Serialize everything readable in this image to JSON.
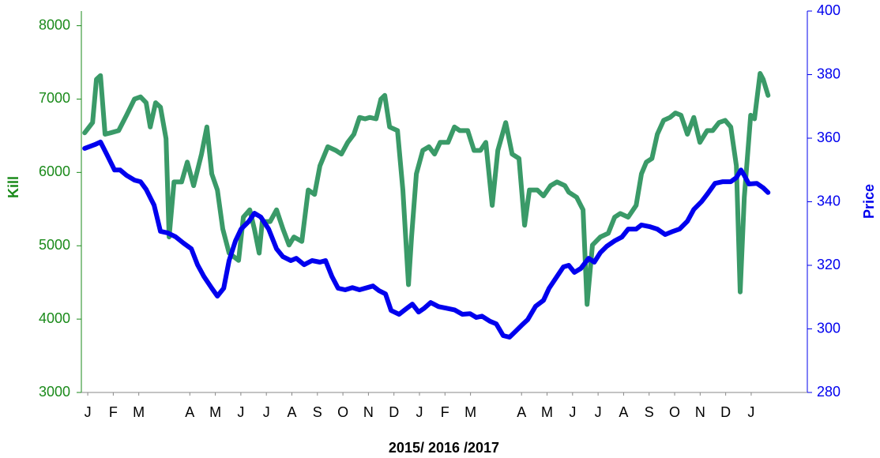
{
  "chart_data": {
    "type": "line",
    "xlabel": "2015/ 2016 /2017",
    "ylabel": "Kill",
    "y2label": "Price",
    "xlim": [
      -0.25,
      28.2
    ],
    "xticks": [
      {
        "value": 0,
        "label": "J"
      },
      {
        "value": 1,
        "label": "F"
      },
      {
        "value": 2,
        "label": "M"
      },
      {
        "value": 4,
        "label": "A"
      },
      {
        "value": 5,
        "label": "M"
      },
      {
        "value": 6,
        "label": "J"
      },
      {
        "value": 7,
        "label": "J"
      },
      {
        "value": 8,
        "label": "A"
      },
      {
        "value": 9,
        "label": "S"
      },
      {
        "value": 10,
        "label": "O"
      },
      {
        "value": 11,
        "label": "N"
      },
      {
        "value": 12,
        "label": "D"
      },
      {
        "value": 13,
        "label": "J"
      },
      {
        "value": 14,
        "label": "F"
      },
      {
        "value": 15,
        "label": "M"
      },
      {
        "value": 17,
        "label": "A"
      },
      {
        "value": 18,
        "label": "M"
      },
      {
        "value": 19,
        "label": "J"
      },
      {
        "value": 20,
        "label": "J"
      },
      {
        "value": 21,
        "label": "A"
      },
      {
        "value": 22,
        "label": "S"
      },
      {
        "value": 23,
        "label": "O"
      },
      {
        "value": 24,
        "label": "N"
      },
      {
        "value": 25,
        "label": "D"
      },
      {
        "value": 26,
        "label": "J"
      }
    ],
    "ylim": [
      3000,
      8200
    ],
    "yticks": [
      3000,
      4000,
      5000,
      6000,
      7000,
      8000
    ],
    "y2lim": [
      280,
      400
    ],
    "y2ticks": [
      280,
      300,
      320,
      340,
      360,
      380,
      400
    ],
    "series": [
      {
        "name": "Kill",
        "color": "#3a9a68",
        "axis": "y",
        "x": [
          -0.12,
          0.19,
          0.34,
          0.5,
          0.68,
          0.9,
          1.21,
          1.52,
          1.83,
          2.07,
          2.29,
          2.45,
          2.66,
          2.85,
          3.07,
          3.19,
          3.38,
          3.68,
          3.9,
          4.15,
          4.46,
          4.67,
          4.86,
          5.08,
          5.29,
          5.54,
          5.91,
          6.1,
          6.35,
          6.53,
          6.72,
          6.84,
          7.15,
          7.4,
          7.65,
          7.89,
          8.08,
          8.39,
          8.64,
          8.89,
          9.1,
          9.41,
          9.72,
          9.94,
          10.19,
          10.43,
          10.65,
          10.87,
          11.05,
          11.3,
          11.49,
          11.64,
          11.83,
          12.14,
          12.35,
          12.57,
          12.69,
          12.88,
          13.13,
          13.37,
          13.59,
          13.81,
          14.12,
          14.37,
          14.58,
          14.89,
          15.14,
          15.39,
          15.6,
          15.85,
          16.07,
          16.38,
          16.63,
          16.9,
          17.12,
          17.31,
          17.62,
          17.86,
          18.14,
          18.39,
          18.7,
          18.85,
          19.16,
          19.41,
          19.57,
          19.78,
          20.09,
          20.4,
          20.65,
          20.87,
          21.18,
          21.49,
          21.7,
          21.89,
          22.11,
          22.32,
          22.57,
          22.82,
          23.03,
          23.25,
          23.5,
          23.75,
          23.99,
          24.27,
          24.49,
          24.74,
          24.98,
          25.2,
          25.42,
          25.57,
          25.73,
          25.98,
          26.13,
          26.35,
          26.47,
          26.66
        ],
        "values": [
          6540,
          6680,
          7270,
          7320,
          6520,
          6540,
          6570,
          6780,
          7000,
          7030,
          6950,
          6620,
          6950,
          6890,
          6460,
          5120,
          5870,
          5870,
          6140,
          5820,
          6250,
          6620,
          5980,
          5760,
          5230,
          4900,
          4800,
          5390,
          5490,
          5230,
          4900,
          5330,
          5330,
          5490,
          5230,
          5010,
          5120,
          5060,
          5760,
          5700,
          6090,
          6350,
          6300,
          6250,
          6410,
          6520,
          6750,
          6730,
          6750,
          6730,
          7000,
          7050,
          6620,
          6570,
          5760,
          4470,
          5120,
          5980,
          6300,
          6350,
          6250,
          6410,
          6410,
          6620,
          6570,
          6570,
          6300,
          6300,
          6410,
          5550,
          6300,
          6680,
          6250,
          6190,
          5280,
          5760,
          5760,
          5680,
          5820,
          5870,
          5820,
          5730,
          5660,
          5490,
          4200,
          5010,
          5120,
          5170,
          5390,
          5440,
          5390,
          5550,
          5980,
          6140,
          6190,
          6520,
          6710,
          6750,
          6810,
          6780,
          6520,
          6750,
          6410,
          6570,
          6570,
          6680,
          6710,
          6620,
          6090,
          4370,
          5660,
          6780,
          6730,
          7350,
          7270,
          7050
        ]
      },
      {
        "name": "Price",
        "color": "#0000ee",
        "axis": "y2",
        "x": [
          -0.12,
          0.28,
          0.5,
          0.74,
          1.05,
          1.27,
          1.52,
          1.83,
          2.07,
          2.29,
          2.6,
          2.85,
          3.13,
          3.44,
          3.75,
          4.06,
          4.3,
          4.55,
          4.86,
          5.08,
          5.33,
          5.54,
          5.79,
          6.01,
          6.32,
          6.53,
          6.78,
          7.09,
          7.4,
          7.65,
          7.96,
          8.17,
          8.48,
          8.79,
          9.1,
          9.32,
          9.57,
          9.81,
          10.09,
          10.37,
          10.65,
          10.96,
          11.18,
          11.42,
          11.67,
          11.89,
          12.2,
          12.51,
          12.72,
          12.97,
          13.19,
          13.44,
          13.75,
          14.06,
          14.37,
          14.68,
          14.98,
          15.23,
          15.45,
          15.76,
          16.01,
          16.28,
          16.53,
          16.75,
          17.0,
          17.24,
          17.55,
          17.86,
          18.08,
          18.39,
          18.64,
          18.85,
          19.07,
          19.32,
          19.63,
          19.85,
          20.09,
          20.34,
          20.65,
          20.93,
          21.18,
          21.49,
          21.7,
          22.01,
          22.32,
          22.63,
          22.94,
          23.19,
          23.5,
          23.75,
          24.06,
          24.3,
          24.58,
          24.89,
          25.2,
          25.42,
          25.6,
          25.73,
          25.91,
          26.22,
          26.47,
          26.66
        ],
        "values": [
          356.8,
          358,
          358.8,
          355,
          350,
          350,
          348.3,
          346.8,
          346.3,
          343.9,
          338.9,
          330.7,
          330.2,
          329,
          327,
          325.2,
          320.2,
          316.5,
          312.8,
          310.3,
          312.8,
          321.5,
          327.7,
          331.4,
          333.9,
          336.4,
          335.2,
          331.4,
          325.2,
          322.7,
          321.5,
          322.2,
          320.2,
          321.5,
          321,
          321.5,
          316.5,
          312.8,
          312.3,
          313,
          312.3,
          313,
          313.5,
          312,
          311,
          305.8,
          304.6,
          306.5,
          307.8,
          305.3,
          306.5,
          308.3,
          307,
          306.5,
          306,
          304.6,
          304.8,
          303.6,
          304,
          302.4,
          301.6,
          297.9,
          297.4,
          299.1,
          301.1,
          302.9,
          307.1,
          309,
          312.8,
          316.5,
          319.5,
          320,
          317.8,
          319,
          322.2,
          321,
          324,
          326,
          327.7,
          328.9,
          331.4,
          331.4,
          332.7,
          332.2,
          331.4,
          329.7,
          330.7,
          331.4,
          333.9,
          337.6,
          340.1,
          342.6,
          345.8,
          346.3,
          346.3,
          347.6,
          350,
          348.3,
          345.6,
          345.8,
          344.4,
          342.9
        ]
      }
    ]
  }
}
